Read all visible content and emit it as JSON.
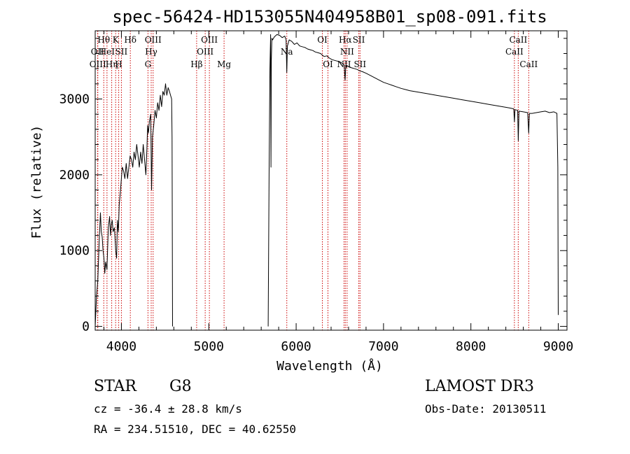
{
  "chart_data": {
    "type": "line",
    "title": "spec-56424-HD153055N404958B01_sp08-091.fits",
    "xlabel": "Wavelength (Å)",
    "ylabel": "Flux (relative)",
    "xlim": [
      3700,
      9100
    ],
    "ylim": [
      -50,
      3900
    ],
    "xticks": [
      4000,
      5000,
      6000,
      7000,
      8000,
      9000
    ],
    "yticks": [
      0,
      1000,
      2000,
      3000
    ],
    "series": [
      {
        "name": "spectrum",
        "points": [
          [
            3700,
            0
          ],
          [
            3715,
            400
          ],
          [
            3730,
            600
          ],
          [
            3745,
            1100
          ],
          [
            3760,
            1500
          ],
          [
            3770,
            1250
          ],
          [
            3780,
            1180
          ],
          [
            3790,
            1000
          ],
          [
            3800,
            900
          ],
          [
            3810,
            700
          ],
          [
            3820,
            850
          ],
          [
            3835,
            750
          ],
          [
            3850,
            1300
          ],
          [
            3865,
            1450
          ],
          [
            3875,
            1200
          ],
          [
            3885,
            1350
          ],
          [
            3895,
            1400
          ],
          [
            3905,
            1250
          ],
          [
            3920,
            1300
          ],
          [
            3935,
            1000
          ],
          [
            3945,
            900
          ],
          [
            3955,
            1400
          ],
          [
            3965,
            1250
          ],
          [
            3975,
            1600
          ],
          [
            3990,
            1800
          ],
          [
            4000,
            1950
          ],
          [
            4010,
            2100
          ],
          [
            4025,
            2050
          ],
          [
            4040,
            1950
          ],
          [
            4055,
            2150
          ],
          [
            4070,
            1950
          ],
          [
            4085,
            2100
          ],
          [
            4100,
            2250
          ],
          [
            4115,
            2200
          ],
          [
            4130,
            2100
          ],
          [
            4145,
            2300
          ],
          [
            4160,
            2200
          ],
          [
            4175,
            2400
          ],
          [
            4190,
            2250
          ],
          [
            4205,
            2100
          ],
          [
            4220,
            2300
          ],
          [
            4235,
            2150
          ],
          [
            4250,
            2400
          ],
          [
            4265,
            2200
          ],
          [
            4280,
            2000
          ],
          [
            4292,
            2350
          ],
          [
            4300,
            2650
          ],
          [
            4310,
            2550
          ],
          [
            4320,
            2700
          ],
          [
            4335,
            2800
          ],
          [
            4345,
            1800
          ],
          [
            4355,
            2500
          ],
          [
            4370,
            2650
          ],
          [
            4385,
            2850
          ],
          [
            4400,
            2750
          ],
          [
            4415,
            2950
          ],
          [
            4430,
            2850
          ],
          [
            4445,
            3050
          ],
          [
            4460,
            2900
          ],
          [
            4475,
            3100
          ],
          [
            4490,
            3050
          ],
          [
            4505,
            3200
          ],
          [
            4520,
            3050
          ],
          [
            4535,
            3150
          ],
          [
            4550,
            3100
          ],
          [
            4562,
            3050
          ],
          [
            4575,
            3000
          ],
          [
            4580,
            2500
          ],
          [
            4585,
            0
          ],
          null,
          [
            5680,
            0
          ],
          [
            5690,
            2000
          ],
          [
            5700,
            3400
          ],
          [
            5708,
            3850
          ],
          [
            5712,
            2100
          ],
          [
            5716,
            3500
          ],
          [
            5722,
            3800
          ],
          [
            5730,
            3780
          ],
          [
            5750,
            3820
          ],
          [
            5780,
            3850
          ],
          [
            5810,
            3840
          ],
          [
            5840,
            3810
          ],
          [
            5870,
            3830
          ],
          [
            5885,
            3780
          ],
          [
            5893,
            3350
          ],
          [
            5900,
            3700
          ],
          [
            5920,
            3780
          ],
          [
            5950,
            3760
          ],
          [
            5980,
            3720
          ],
          [
            6010,
            3740
          ],
          [
            6040,
            3700
          ],
          [
            6070,
            3690
          ],
          [
            6100,
            3680
          ],
          [
            6130,
            3660
          ],
          [
            6160,
            3650
          ],
          [
            6190,
            3640
          ],
          [
            6220,
            3620
          ],
          [
            6250,
            3610
          ],
          [
            6280,
            3600
          ],
          [
            6300,
            3580
          ],
          [
            6320,
            3560
          ],
          [
            6350,
            3570
          ],
          [
            6380,
            3540
          ],
          [
            6410,
            3520
          ],
          [
            6440,
            3510
          ],
          [
            6470,
            3500
          ],
          [
            6500,
            3490
          ],
          [
            6530,
            3470
          ],
          [
            6550,
            3450
          ],
          [
            6560,
            3250
          ],
          [
            6567,
            3400
          ],
          [
            6580,
            3440
          ],
          [
            6610,
            3420
          ],
          [
            6640,
            3410
          ],
          [
            6670,
            3400
          ],
          [
            6700,
            3390
          ],
          [
            6730,
            3370
          ],
          [
            6760,
            3360
          ],
          [
            6800,
            3340
          ],
          [
            6850,
            3310
          ],
          [
            6900,
            3280
          ],
          [
            6950,
            3250
          ],
          [
            7000,
            3220
          ],
          [
            7050,
            3200
          ],
          [
            7100,
            3180
          ],
          [
            7150,
            3160
          ],
          [
            7200,
            3140
          ],
          [
            7300,
            3110
          ],
          [
            7400,
            3090
          ],
          [
            7500,
            3070
          ],
          [
            7600,
            3050
          ],
          [
            7700,
            3030
          ],
          [
            7800,
            3010
          ],
          [
            7900,
            2990
          ],
          [
            8000,
            2970
          ],
          [
            8100,
            2950
          ],
          [
            8200,
            2930
          ],
          [
            8300,
            2910
          ],
          [
            8400,
            2890
          ],
          [
            8450,
            2880
          ],
          [
            8490,
            2870
          ],
          [
            8498,
            2700
          ],
          [
            8505,
            2860
          ],
          [
            8535,
            2850
          ],
          [
            8542,
            2450
          ],
          [
            8550,
            2840
          ],
          [
            8600,
            2830
          ],
          [
            8650,
            2820
          ],
          [
            8662,
            2550
          ],
          [
            8670,
            2810
          ],
          [
            8700,
            2810
          ],
          [
            8750,
            2820
          ],
          [
            8800,
            2830
          ],
          [
            8850,
            2840
          ],
          [
            8900,
            2820
          ],
          [
            8950,
            2830
          ],
          [
            8985,
            2810
          ],
          [
            8995,
            2100
          ],
          [
            9000,
            150
          ]
        ]
      }
    ],
    "line_markers": [
      {
        "label": "OII",
        "x": 3727,
        "row": 2
      },
      {
        "label": "OIII",
        "x": 3730,
        "row": 3
      },
      {
        "label": "Hθ",
        "x": 3798,
        "row": 1
      },
      {
        "label": "HeI",
        "x": 3835,
        "row": 2
      },
      {
        "label": "Hη",
        "x": 3889,
        "row": 3
      },
      {
        "label": "K",
        "x": 3934,
        "row": 1
      },
      {
        "label": "SII",
        "x": 4000,
        "row": 2
      },
      {
        "label": "H",
        "x": 3969,
        "row": 3
      },
      {
        "label": "Hδ",
        "x": 4102,
        "row": 1
      },
      {
        "label": "OIII",
        "x": 4363,
        "row": 1
      },
      {
        "label": "Hγ",
        "x": 4341,
        "row": 2
      },
      {
        "label": "G",
        "x": 4304,
        "row": 3
      },
      {
        "label": "Hβ",
        "x": 4861,
        "row": 3
      },
      {
        "label": "OIII",
        "x": 4959,
        "row": 2
      },
      {
        "label": "OIII",
        "x": 5007,
        "row": 1
      },
      {
        "label": "Mg",
        "x": 5175,
        "row": 3
      },
      {
        "label": "Na",
        "x": 5893,
        "row": 2
      },
      {
        "label": "OI",
        "x": 6300,
        "row": 1
      },
      {
        "label": "OI",
        "x": 6364,
        "row": 3
      },
      {
        "label": "NII",
        "x": 6548,
        "row": 3
      },
      {
        "label": "Hα",
        "x": 6563,
        "row": 1
      },
      {
        "label": "NII",
        "x": 6583,
        "row": 2
      },
      {
        "label": "SII",
        "x": 6717,
        "row": 1
      },
      {
        "label": "SII",
        "x": 6731,
        "row": 3
      },
      {
        "label": "CaII",
        "x": 8498,
        "row": 2
      },
      {
        "label": "CaII",
        "x": 8542,
        "row": 1
      },
      {
        "label": "CaII",
        "x": 8662,
        "row": 3
      }
    ]
  },
  "info": {
    "object_class": "STAR",
    "subclass": "G8",
    "survey": "LAMOST DR3",
    "redshift": "cz = -36.4 ± 28.8 km/s",
    "obs_date": "Obs-Date: 20130511",
    "coords": "RA = 234.51510, DEC =  40.62550"
  },
  "colors": {
    "spectrum": "#000000",
    "marker_line": "#cc0000",
    "axes": "#000000"
  }
}
